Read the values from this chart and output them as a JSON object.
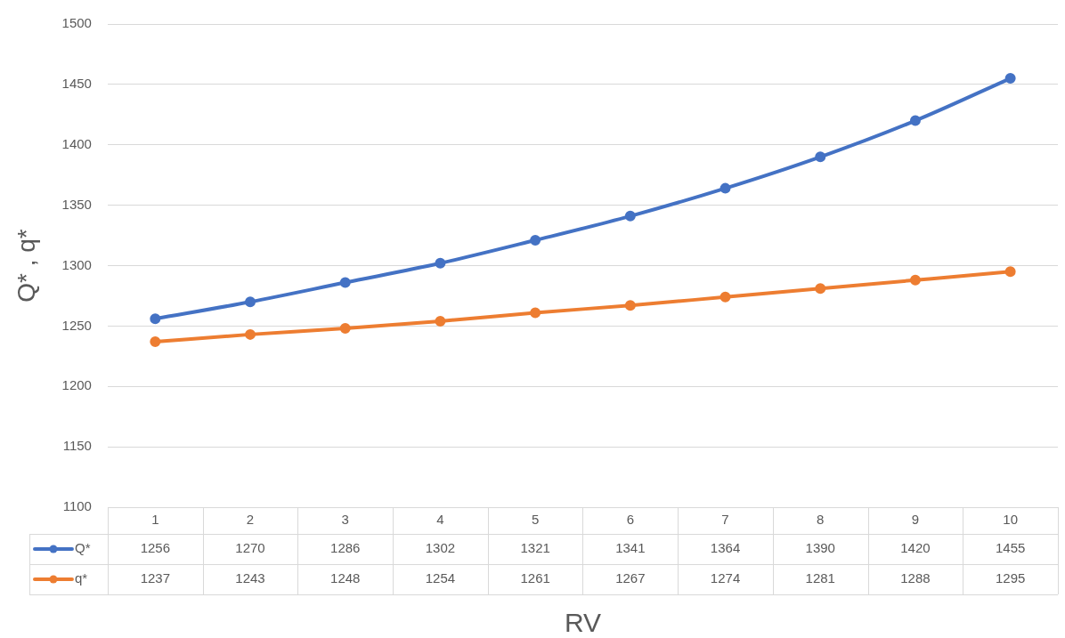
{
  "chart_data": {
    "type": "line",
    "xlabel": "RV",
    "ylabel": "Q* , q*",
    "categories": [
      "1",
      "2",
      "3",
      "4",
      "5",
      "6",
      "7",
      "8",
      "9",
      "10"
    ],
    "series": [
      {
        "name": "Q*",
        "color": "#4472c4",
        "values": [
          1256,
          1270,
          1286,
          1302,
          1321,
          1341,
          1364,
          1390,
          1420,
          1455
        ]
      },
      {
        "name": "q*",
        "color": "#ed7d31",
        "values": [
          1237,
          1243,
          1248,
          1254,
          1261,
          1267,
          1274,
          1281,
          1288,
          1295
        ]
      }
    ],
    "ylim": [
      1100,
      1500
    ],
    "yticks": [
      1100,
      1150,
      1200,
      1250,
      1300,
      1350,
      1400,
      1450,
      1500
    ],
    "grid": "y",
    "legend": "bottom",
    "data_labels": true,
    "marker": "circle",
    "line_style": "solid"
  }
}
